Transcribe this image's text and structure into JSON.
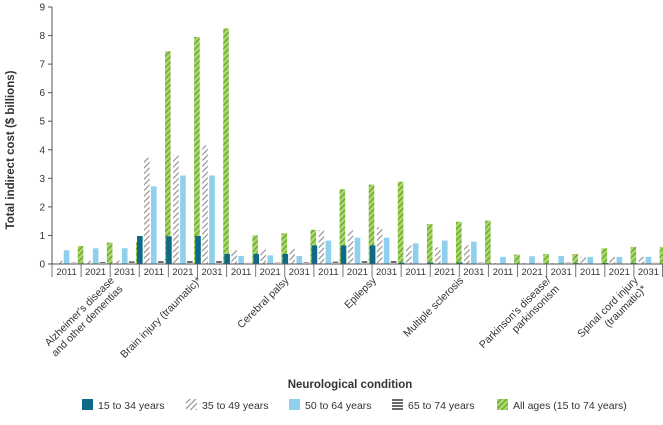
{
  "chart_data": {
    "type": "bar",
    "ylabel": "Total indirect cost ($ billions)",
    "xlabel": "Neurological condition",
    "ylim": [
      0,
      9
    ],
    "yticks": [
      0,
      1,
      2,
      3,
      4,
      5,
      6,
      7,
      8,
      9
    ],
    "grid": false,
    "legend_position": "bottom",
    "years": [
      "2011",
      "2021",
      "2031"
    ],
    "conditions": [
      {
        "label_lines": [
          "Alzheimer's disease",
          "and other dementias"
        ]
      },
      {
        "label_lines": [
          "Brain injury (traumatic)*"
        ]
      },
      {
        "label_lines": [
          "Cerebral palsy"
        ]
      },
      {
        "label_lines": [
          "Epilepsy"
        ]
      },
      {
        "label_lines": [
          "Multiple sclerosis"
        ]
      },
      {
        "label_lines": [
          "Parkinson's disease/",
          "parkinsonism"
        ]
      },
      {
        "label_lines": [
          "Spinal cord injury",
          "(traumatic)*"
        ]
      }
    ],
    "series": [
      {
        "name": "15 to 34 years",
        "pattern": "solid",
        "color": "#0e6a86",
        "values": [
          [
            0.02,
            0.02,
            0.02
          ],
          [
            0.98,
            0.97,
            0.98
          ],
          [
            0.35,
            0.35,
            0.35
          ],
          [
            0.65,
            0.65,
            0.65
          ],
          [
            0.05,
            0.05,
            0.05
          ],
          [
            0.01,
            0.01,
            0.01
          ],
          [
            0.03,
            0.03,
            0.03
          ]
        ]
      },
      {
        "name": "35 to 49 years",
        "pattern": "diag-gray",
        "color": "#9a9a9a",
        "values": [
          [
            0.12,
            0.11,
            0.12
          ],
          [
            3.72,
            3.8,
            4.15
          ],
          [
            0.48,
            0.5,
            0.52
          ],
          [
            1.18,
            1.18,
            1.28
          ],
          [
            0.65,
            0.58,
            0.65
          ],
          [
            0.03,
            0.03,
            0.03
          ],
          [
            0.25,
            0.25,
            0.25
          ]
        ]
      },
      {
        "name": "50 to 64 years",
        "pattern": "solid",
        "color": "#8fd0ee",
        "values": [
          [
            0.48,
            0.55,
            0.55
          ],
          [
            2.72,
            3.1,
            3.1
          ],
          [
            0.28,
            0.3,
            0.28
          ],
          [
            0.82,
            0.92,
            0.92
          ],
          [
            0.72,
            0.82,
            0.78
          ],
          [
            0.25,
            0.27,
            0.28
          ],
          [
            0.25,
            0.25,
            0.25
          ]
        ]
      },
      {
        "name": "65 to 74 years",
        "pattern": "horiz-dark",
        "color": "#555555",
        "values": [
          [
            0.05,
            0.07,
            0.09
          ],
          [
            0.1,
            0.12,
            0.14
          ],
          [
            0.04,
            0.05,
            0.06
          ],
          [
            0.08,
            0.1,
            0.12
          ],
          [
            0.03,
            0.04,
            0.05
          ],
          [
            0.03,
            0.04,
            0.05
          ],
          [
            0.02,
            0.03,
            0.04
          ]
        ]
      },
      {
        "name": "All ages (15 to 74 years)",
        "pattern": "diag-green",
        "color": "#7ab32e",
        "values": [
          [
            0.63,
            0.75,
            0.75
          ],
          [
            7.45,
            7.95,
            8.25
          ],
          [
            1.0,
            1.08,
            1.2
          ],
          [
            2.62,
            2.78,
            2.88
          ],
          [
            1.4,
            1.48,
            1.52
          ],
          [
            0.33,
            0.35,
            0.35
          ],
          [
            0.55,
            0.6,
            0.6
          ]
        ]
      }
    ]
  }
}
